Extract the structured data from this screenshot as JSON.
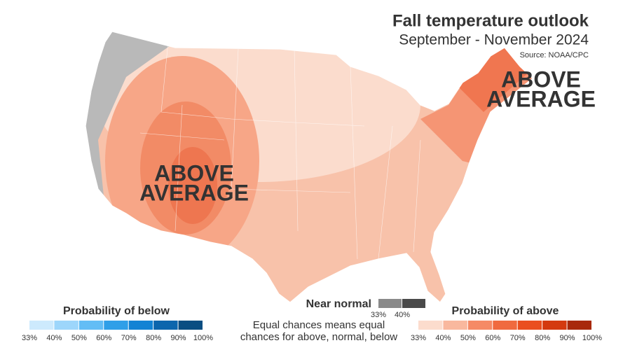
{
  "header": {
    "title": "Fall temperature outlook",
    "subtitle": "September - November 2024",
    "source": "Source: NOAA/CPC"
  },
  "map": {
    "labels": [
      {
        "lines": [
          "ABOVE",
          "AVERAGE"
        ]
      },
      {
        "lines": [
          "ABOVE",
          "AVERAGE"
        ]
      }
    ]
  },
  "legend": {
    "below": {
      "title": "Probability of below",
      "ticks": [
        "33%",
        "40%",
        "50%",
        "60%",
        "70%",
        "80%",
        "90%",
        "100%"
      ],
      "colors": [
        "#cdeafd",
        "#9dd6fb",
        "#63bdf5",
        "#2f9fe8",
        "#1383d4",
        "#0c66ad",
        "#0a4e82"
      ]
    },
    "normal": {
      "title": "Near normal",
      "ticks": [
        "33%",
        "40%"
      ],
      "colors": [
        "#8a8a8a",
        "#4a4a4a"
      ]
    },
    "note": [
      "Equal chances means equal",
      "chances for above, normal, below"
    ],
    "above": {
      "title": "Probability of above",
      "ticks": [
        "33%",
        "40%",
        "50%",
        "60%",
        "70%",
        "80%",
        "90%",
        "100%"
      ],
      "colors": [
        "#fcdccd",
        "#f9b89e",
        "#f58a66",
        "#f06a3f",
        "#ea4f1f",
        "#d43a0f",
        "#a8290b"
      ]
    }
  }
}
